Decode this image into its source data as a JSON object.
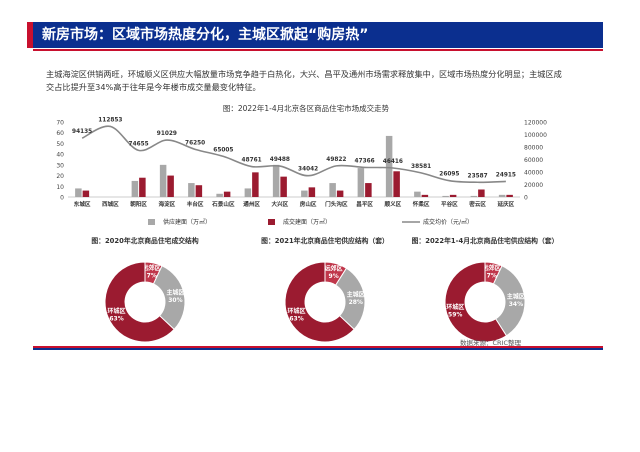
{
  "header": {
    "title": "新房市场：区域市场热度分化，主城区掀起“购房热”"
  },
  "intro": {
    "text": "主城海淀区供销两旺，环城顺义区供应大幅放量市场竞争趋于白热化，大兴、昌平及通州市场需求释放集中，区域市场热度分化明显；主城区成交占比提升至34%高于往年是今年楼市成交量最变化特征。"
  },
  "colors": {
    "supply": "#a8a8a8",
    "deal": "#9b1b30",
    "price_line": "#888888",
    "header_blue": "#0b2f8f",
    "accent_red": "#c8102e"
  },
  "chart_data": [
    {
      "type": "bar",
      "title": "图：2022年1-4月北京各区商品住宅市场成交走势",
      "categories": [
        "东城区",
        "西城区",
        "朝阳区",
        "海淀区",
        "丰台区",
        "石景山区",
        "通州区",
        "大兴区",
        "房山区",
        "门头沟区",
        "昌平区",
        "顺义区",
        "怀柔区",
        "平谷区",
        "密云区",
        "延庆区"
      ],
      "series": [
        {
          "name": "供应建面（万㎡）",
          "axis": "left",
          "values": [
            8,
            0,
            15,
            30,
            13,
            3,
            8,
            30,
            6,
            13,
            27,
            57,
            5,
            1,
            1,
            2
          ]
        },
        {
          "name": "成交建面（万㎡）",
          "axis": "left",
          "values": [
            6,
            0,
            18,
            20,
            11,
            5,
            23,
            19,
            9,
            6,
            13,
            24,
            2,
            2,
            7,
            2
          ]
        },
        {
          "name": "成交均价（元/㎡）",
          "axis": "right",
          "type": "line",
          "values": [
            94135,
            112853,
            74655,
            91029,
            76250,
            65005,
            48761,
            49488,
            34042,
            49822,
            47366,
            46416,
            38581,
            26095,
            23587,
            24915
          ]
        }
      ],
      "ylim": [
        0,
        70
      ],
      "y_ticks": [
        0,
        10,
        20,
        30,
        40,
        50,
        60,
        70
      ],
      "y2lim": [
        0,
        120000
      ],
      "y2_ticks": [
        0,
        20000,
        40000,
        60000,
        80000,
        100000,
        120000
      ],
      "legend": "bottom-right"
    },
    {
      "type": "pie",
      "title": "图：2020年北京商品住宅成交结构",
      "slices": [
        {
          "label": "环城区",
          "value": 63,
          "pct_label": "63%"
        },
        {
          "label": "远郊区",
          "value": 7,
          "pct_label": "7%"
        },
        {
          "label": "主城区",
          "value": 30,
          "pct_label": "30%"
        }
      ]
    },
    {
      "type": "pie",
      "title": "图：2021年北京商品住宅供应结构（套）",
      "slices": [
        {
          "label": "环城区",
          "value": 63,
          "pct_label": "63%"
        },
        {
          "label": "远郊区",
          "value": 9,
          "pct_label": "9%"
        },
        {
          "label": "主城区",
          "value": 28,
          "pct_label": "28%"
        }
      ]
    },
    {
      "type": "pie",
      "title": "图：2022年1-4月北京商品住宅供应结构（套）",
      "slices": [
        {
          "label": "环城区",
          "value": 59,
          "pct_label": "59%"
        },
        {
          "label": "远郊区",
          "value": 7,
          "pct_label": "7%"
        },
        {
          "label": "主城区",
          "value": 34,
          "pct_label": "34%"
        }
      ]
    }
  ],
  "source": "数据来源：CRIC整理"
}
